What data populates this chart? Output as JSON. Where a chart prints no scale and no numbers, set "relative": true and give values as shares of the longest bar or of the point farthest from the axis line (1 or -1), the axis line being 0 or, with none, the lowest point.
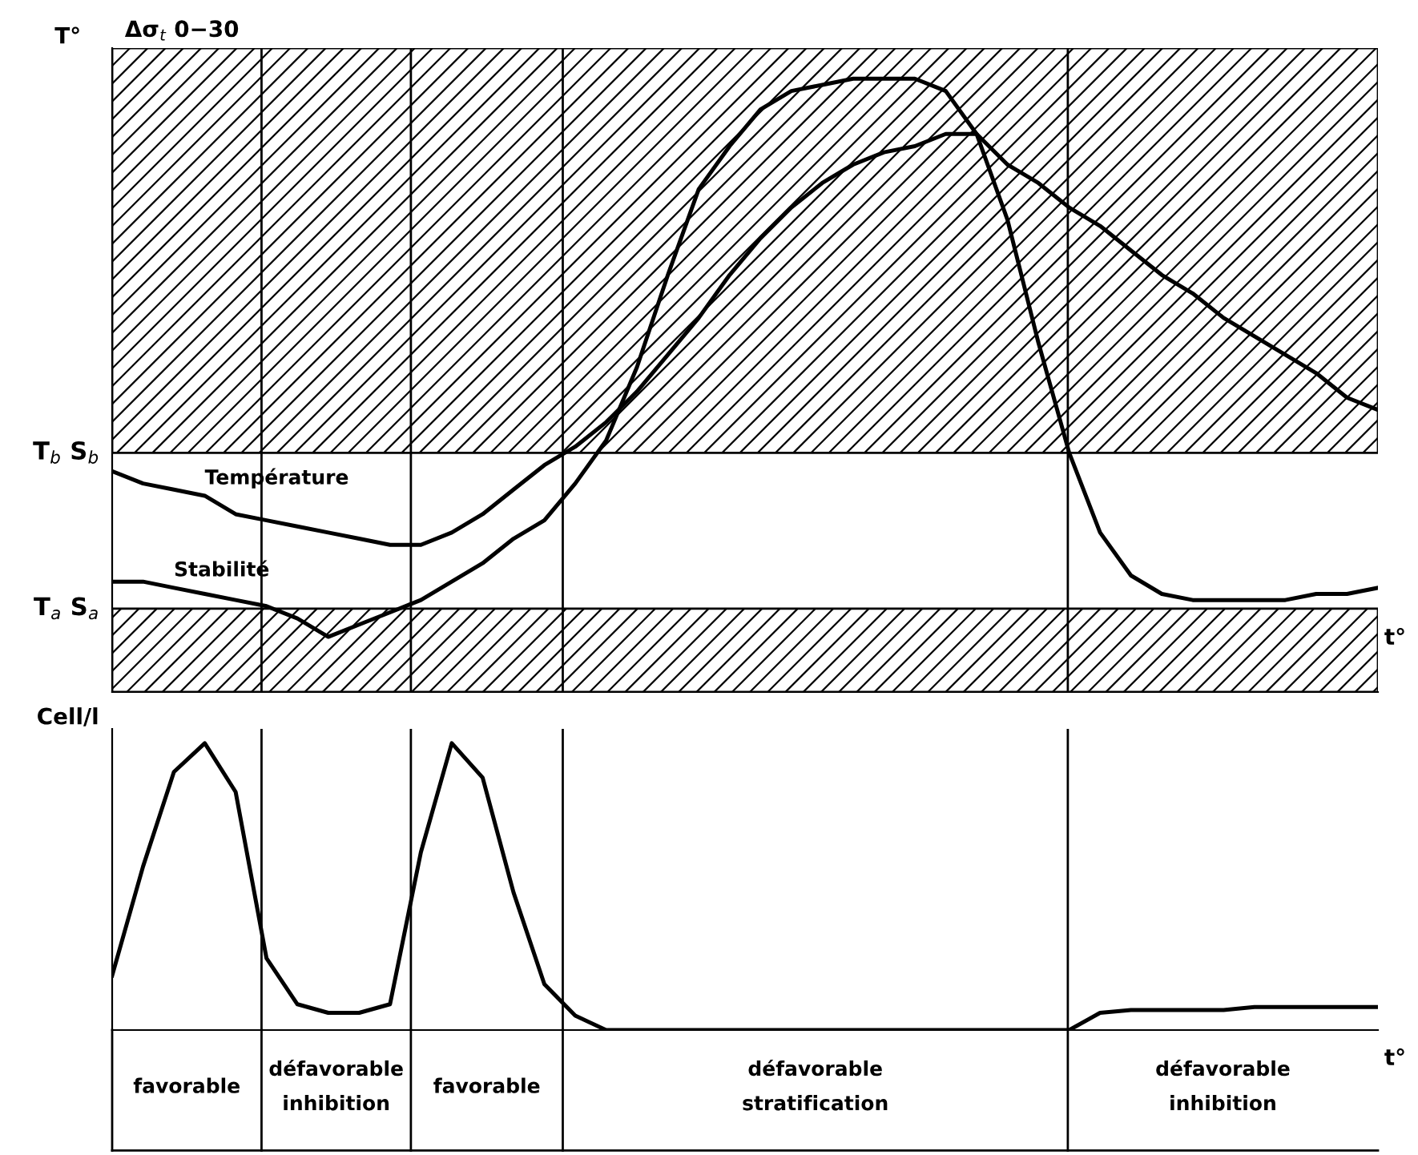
{
  "chart_data": [
    {
      "type": "line",
      "relative": true,
      "xlabel": "t°",
      "ylabel": "T°",
      "categories": [
        null,
        null,
        null,
        null,
        null,
        null,
        null,
        null,
        null,
        null,
        null,
        null,
        null,
        null,
        null,
        null,
        null,
        null,
        null,
        null,
        null,
        null,
        null,
        null,
        null,
        null,
        null,
        null,
        null,
        null,
        null,
        null,
        null,
        null,
        null,
        null,
        null,
        null,
        null,
        null,
        null,
        null
      ],
      "series": [
        {
          "name": "Température",
          "color": "#000000",
          "values": [
            0.36,
            0.34,
            0.33,
            0.32,
            0.29,
            0.28,
            0.27,
            0.26,
            0.25,
            0.24,
            0.24,
            0.26,
            0.29,
            0.33,
            0.37,
            0.4,
            0.44,
            0.49,
            0.55,
            0.61,
            0.68,
            0.74,
            0.79,
            0.83,
            0.86,
            0.88,
            0.89,
            0.91,
            0.91,
            0.86,
            0.83,
            0.79,
            0.76,
            0.72,
            0.68,
            0.65,
            0.61,
            0.58,
            0.55,
            0.52,
            0.48,
            0.46
          ]
        },
        {
          "name": "Stabilité",
          "color": "#000000",
          "values": [
            0.18,
            0.18,
            0.17,
            0.16,
            0.15,
            0.14,
            0.12,
            0.09,
            0.11,
            0.13,
            0.15,
            0.18,
            0.21,
            0.25,
            0.28,
            0.34,
            0.41,
            0.53,
            0.68,
            0.82,
            0.89,
            0.95,
            0.98,
            0.99,
            1.0,
            1.0,
            1.0,
            0.98,
            0.91,
            0.77,
            0.57,
            0.39,
            0.26,
            0.19,
            0.16,
            0.15,
            0.15,
            0.15,
            0.15,
            0.16,
            0.16,
            0.17
          ]
        }
      ],
      "bands": [
        {
          "axis": "y",
          "from": 0.39,
          "to": 1.05,
          "color": "#000000",
          "label": "T$_{b}$ S$_{b}$"
        },
        {
          "axis": "y",
          "from": 0,
          "to": 0.136,
          "color": "#000000",
          "label": "T$_{a}$ S$_{a}$"
        }
      ],
      "annotations": [
        "Δσ$_{t}$ 0−30"
      ]
    },
    {
      "type": "line",
      "relative": true,
      "xlabel": "t°",
      "ylabel": "Cell/l",
      "categories": [
        null,
        null,
        null,
        null,
        null,
        null,
        null,
        null,
        null,
        null,
        null,
        null,
        null,
        null,
        null,
        null,
        null,
        null,
        null,
        null,
        null,
        null,
        null,
        null,
        null,
        null,
        null,
        null,
        null,
        null,
        null,
        null,
        null,
        null,
        null,
        null,
        null,
        null,
        null,
        null,
        null,
        null
      ],
      "series": [
        {
          "color": "#000000",
          "values": [
            0.19,
            0.57,
            0.9,
            1.0,
            0.83,
            0.25,
            0.09,
            0.06,
            0.06,
            0.09,
            0.62,
            1.0,
            0.88,
            0.48,
            0.16,
            0.05,
            0,
            0,
            0,
            0,
            0,
            0,
            0,
            0,
            0,
            0,
            0,
            0,
            0,
            0,
            0,
            0,
            0.06,
            0.07,
            0.07,
            0.07,
            0.07,
            0.08,
            0.08,
            0.08,
            0.08,
            0.08
          ]
        }
      ],
      "annotations": [
        "favorable",
        "défavorable\ninhibition",
        "favorable",
        "défavorable\nstratification",
        "défavorable\ninhibition"
      ]
    }
  ]
}
